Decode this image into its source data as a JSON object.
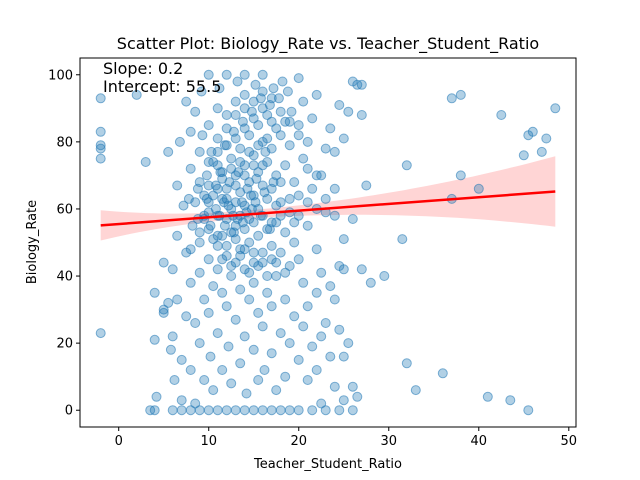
{
  "chart_data": {
    "type": "scatter",
    "title": "Scatter Plot: Biology_Rate vs. Teacher_Student_Ratio",
    "xlabel": "Teacher_Student_Ratio",
    "ylabel": "Biology_Rate",
    "xlim": [
      -4.3,
      50.8
    ],
    "ylim": [
      -5,
      105
    ],
    "x_ticks": [
      0,
      10,
      20,
      30,
      40,
      50
    ],
    "y_ticks": [
      0,
      20,
      40,
      60,
      80,
      100
    ],
    "grid": false,
    "annotations": [
      "Slope: 0.2",
      "Intercept: 55.5"
    ],
    "regression": {
      "slope": 0.2,
      "intercept": 55.5,
      "x_range": [
        -2,
        48.5
      ],
      "line_color": "#ff0000",
      "ci_color": "#ffb3b3",
      "ci_half_width_ends": [
        4.5,
        10.5
      ],
      "ci_half_width_center": 1.2,
      "ci_center_x": 13
    },
    "point_color": "#1f77b4",
    "points": [
      [
        -2,
        93
      ],
      [
        -2,
        83
      ],
      [
        -2,
        79
      ],
      [
        -2,
        78
      ],
      [
        -2,
        75
      ],
      [
        -2,
        23
      ],
      [
        2,
        94
      ],
      [
        3,
        74
      ],
      [
        3.5,
        0
      ],
      [
        4,
        35
      ],
      [
        4,
        21
      ],
      [
        4,
        0
      ],
      [
        4.2,
        4
      ],
      [
        5,
        30
      ],
      [
        5,
        44
      ],
      [
        5,
        29
      ],
      [
        5.5,
        77
      ],
      [
        5.5,
        32
      ],
      [
        5.8,
        18
      ],
      [
        6,
        0
      ],
      [
        6,
        42
      ],
      [
        6,
        22
      ],
      [
        6.2,
        9
      ],
      [
        6.5,
        52
      ],
      [
        6.5,
        67
      ],
      [
        6.5,
        33
      ],
      [
        6.8,
        80
      ],
      [
        7,
        3
      ],
      [
        7,
        0
      ],
      [
        7,
        15
      ],
      [
        7.2,
        61
      ],
      [
        7.5,
        28
      ],
      [
        7.5,
        92
      ],
      [
        7.5,
        47
      ],
      [
        7.8,
        63
      ],
      [
        8,
        83
      ],
      [
        8,
        72
      ],
      [
        8,
        38
      ],
      [
        8,
        12
      ],
      [
        8,
        0
      ],
      [
        8.2,
        55
      ],
      [
        8.5,
        26
      ],
      [
        8.5,
        89
      ],
      [
        8.5,
        2
      ],
      [
        8.8,
        66
      ],
      [
        9,
        77
      ],
      [
        9,
        50
      ],
      [
        9,
        41
      ],
      [
        9,
        20
      ],
      [
        9,
        0
      ],
      [
        9.2,
        95
      ],
      [
        9.5,
        58
      ],
      [
        9.5,
        33
      ],
      [
        9.5,
        9
      ],
      [
        9.8,
        70
      ],
      [
        10,
        85
      ],
      [
        10,
        62
      ],
      [
        10,
        54
      ],
      [
        10,
        45
      ],
      [
        10,
        29
      ],
      [
        10,
        100
      ],
      [
        10,
        0
      ],
      [
        10.2,
        16
      ],
      [
        10.5,
        74
      ],
      [
        10.5,
        37
      ],
      [
        10.5,
        6
      ],
      [
        10.8,
        67
      ],
      [
        11,
        90
      ],
      [
        11,
        81
      ],
      [
        11,
        58
      ],
      [
        11,
        49
      ],
      [
        11,
        42
      ],
      [
        11,
        23
      ],
      [
        11,
        0
      ],
      [
        11.2,
        96
      ],
      [
        11.5,
        71
      ],
      [
        11.5,
        63
      ],
      [
        11.5,
        52
      ],
      [
        11.5,
        35
      ],
      [
        11.5,
        12
      ],
      [
        11.8,
        79
      ],
      [
        12,
        88
      ],
      [
        12,
        66
      ],
      [
        12,
        57
      ],
      [
        12,
        46
      ],
      [
        12,
        31
      ],
      [
        12,
        100
      ],
      [
        12,
        0
      ],
      [
        12.2,
        19
      ],
      [
        12.5,
        75
      ],
      [
        12.5,
        60
      ],
      [
        12.5,
        53
      ],
      [
        12.5,
        40
      ],
      [
        12.5,
        8
      ],
      [
        12.8,
        83
      ],
      [
        13,
        92
      ],
      [
        13,
        70
      ],
      [
        13,
        62
      ],
      [
        13,
        55
      ],
      [
        13,
        44
      ],
      [
        13,
        27
      ],
      [
        13,
        0
      ],
      [
        13.2,
        98
      ],
      [
        13.5,
        78
      ],
      [
        13.5,
        65
      ],
      [
        13.5,
        58
      ],
      [
        13.5,
        48
      ],
      [
        13.5,
        36
      ],
      [
        13.5,
        14
      ],
      [
        13.8,
        86
      ],
      [
        14,
        94
      ],
      [
        14,
        73
      ],
      [
        14,
        61
      ],
      [
        14,
        54
      ],
      [
        14,
        42
      ],
      [
        14,
        22
      ],
      [
        14,
        100
      ],
      [
        14,
        0
      ],
      [
        14.2,
        5
      ],
      [
        14.5,
        82
      ],
      [
        14.5,
        68
      ],
      [
        14.5,
        57
      ],
      [
        14.5,
        50
      ],
      [
        14.5,
        33
      ],
      [
        14.8,
        89
      ],
      [
        15,
        76
      ],
      [
        15,
        64
      ],
      [
        15,
        56
      ],
      [
        15,
        47
      ],
      [
        15,
        38
      ],
      [
        15,
        18
      ],
      [
        15,
        0
      ],
      [
        15.2,
        97
      ],
      [
        15.5,
        85
      ],
      [
        15.5,
        71
      ],
      [
        15.5,
        60
      ],
      [
        15.5,
        52
      ],
      [
        15.5,
        29
      ],
      [
        15.5,
        9
      ],
      [
        15.8,
        93
      ],
      [
        16,
        80
      ],
      [
        16,
        67
      ],
      [
        16,
        58
      ],
      [
        16,
        44
      ],
      [
        16,
        25
      ],
      [
        16,
        100
      ],
      [
        16,
        0
      ],
      [
        16.2,
        12
      ],
      [
        16.5,
        88
      ],
      [
        16.5,
        74
      ],
      [
        16.5,
        63
      ],
      [
        16.5,
        54
      ],
      [
        16.5,
        35
      ],
      [
        16.8,
        91
      ],
      [
        17,
        78
      ],
      [
        17,
        66
      ],
      [
        17,
        49
      ],
      [
        17,
        31
      ],
      [
        17,
        17
      ],
      [
        17,
        0
      ],
      [
        17.2,
        96
      ],
      [
        17.5,
        84
      ],
      [
        17.5,
        70
      ],
      [
        17.5,
        56
      ],
      [
        17.5,
        40
      ],
      [
        17.5,
        6
      ],
      [
        17.8,
        93
      ],
      [
        18,
        82
      ],
      [
        18,
        62
      ],
      [
        18,
        47
      ],
      [
        18,
        23
      ],
      [
        18,
        0
      ],
      [
        18.2,
        98
      ],
      [
        18.5,
        86
      ],
      [
        18.5,
        73
      ],
      [
        18.5,
        53
      ],
      [
        18.5,
        33
      ],
      [
        18.5,
        10
      ],
      [
        18.8,
        95
      ],
      [
        19,
        79
      ],
      [
        19,
        59
      ],
      [
        19,
        43
      ],
      [
        19,
        20
      ],
      [
        19,
        0
      ],
      [
        19.2,
        89
      ],
      [
        19.5,
        68
      ],
      [
        19.5,
        50
      ],
      [
        19.5,
        28
      ],
      [
        20,
        99
      ],
      [
        20,
        85
      ],
      [
        20,
        64
      ],
      [
        20,
        45
      ],
      [
        20,
        15
      ],
      [
        20,
        0
      ],
      [
        20.5,
        92
      ],
      [
        20.5,
        75
      ],
      [
        20.5,
        38
      ],
      [
        20.5,
        25
      ],
      [
        21,
        80
      ],
      [
        21,
        55
      ],
      [
        21,
        31
      ],
      [
        21,
        9
      ],
      [
        21.5,
        87
      ],
      [
        21.5,
        66
      ],
      [
        21.5,
        19
      ],
      [
        21.5,
        0
      ],
      [
        22,
        94
      ],
      [
        22,
        48
      ],
      [
        22,
        35
      ],
      [
        22,
        12
      ],
      [
        22.5,
        70
      ],
      [
        22.5,
        41
      ],
      [
        22.5,
        22
      ],
      [
        22.5,
        2
      ],
      [
        23,
        78
      ],
      [
        23,
        59
      ],
      [
        23,
        26
      ],
      [
        23,
        0
      ],
      [
        23.5,
        84
      ],
      [
        23.5,
        37
      ],
      [
        23.5,
        16
      ],
      [
        24,
        77
      ],
      [
        24,
        66
      ],
      [
        24,
        33
      ],
      [
        24,
        7
      ],
      [
        24.5,
        91
      ],
      [
        24.5,
        43
      ],
      [
        24.5,
        24
      ],
      [
        24.5,
        0
      ],
      [
        25,
        81
      ],
      [
        25,
        42
      ],
      [
        25,
        16
      ],
      [
        25,
        3
      ],
      [
        25.5,
        89
      ],
      [
        25.5,
        20
      ],
      [
        26,
        57
      ],
      [
        26,
        98
      ],
      [
        26,
        7
      ],
      [
        26,
        0
      ],
      [
        26.5,
        97
      ],
      [
        26.5,
        4
      ],
      [
        27,
        97
      ],
      [
        27,
        88
      ],
      [
        27,
        42
      ],
      [
        27.5,
        67
      ],
      [
        28,
        38
      ],
      [
        29.5,
        40
      ],
      [
        31.5,
        51
      ],
      [
        32,
        73
      ],
      [
        32,
        14
      ],
      [
        33,
        6
      ],
      [
        36,
        11
      ],
      [
        37,
        93
      ],
      [
        37,
        63
      ],
      [
        38,
        94
      ],
      [
        38,
        70
      ],
      [
        40,
        66
      ],
      [
        41,
        4
      ],
      [
        42.5,
        88
      ],
      [
        43.5,
        3
      ],
      [
        45,
        76
      ],
      [
        45.5,
        82
      ],
      [
        45.5,
        0
      ],
      [
        46,
        83
      ],
      [
        47,
        77
      ],
      [
        47.5,
        81
      ],
      [
        48.5,
        90
      ],
      [
        9.5,
        57
      ],
      [
        10.5,
        64
      ],
      [
        11.5,
        69
      ],
      [
        12.5,
        72
      ],
      [
        13.5,
        74
      ],
      [
        14.5,
        77
      ],
      [
        15.5,
        79
      ],
      [
        16.5,
        81
      ],
      [
        17.5,
        61
      ],
      [
        11,
        73
      ],
      [
        12,
        79
      ],
      [
        13,
        81
      ],
      [
        14,
        84
      ],
      [
        15,
        87
      ],
      [
        16,
        90
      ],
      [
        17,
        86
      ],
      [
        18,
        68
      ],
      [
        10,
        74
      ],
      [
        11,
        66
      ],
      [
        12,
        63
      ],
      [
        13,
        67
      ],
      [
        14,
        70
      ],
      [
        15,
        73
      ],
      [
        16,
        73
      ],
      [
        17,
        56
      ],
      [
        9,
        68
      ],
      [
        10,
        59
      ],
      [
        11,
        52
      ],
      [
        12,
        49
      ],
      [
        13,
        51
      ],
      [
        14,
        48
      ],
      [
        15,
        44
      ],
      [
        16,
        47
      ],
      [
        17,
        45
      ],
      [
        18,
        58
      ],
      [
        19,
        63
      ],
      [
        8.5,
        62
      ],
      [
        9.5,
        64
      ],
      [
        10.5,
        51
      ],
      [
        11.5,
        45
      ],
      [
        12.5,
        43
      ],
      [
        13.5,
        46
      ],
      [
        14.5,
        41
      ],
      [
        15.5,
        43
      ],
      [
        16.5,
        40
      ],
      [
        17.5,
        44
      ],
      [
        18.5,
        41
      ],
      [
        19.5,
        56
      ],
      [
        20,
        58
      ],
      [
        21,
        62
      ],
      [
        22,
        60
      ],
      [
        8,
        48
      ],
      [
        9,
        53
      ],
      [
        10,
        67
      ],
      [
        11,
        77
      ],
      [
        12,
        84
      ],
      [
        13,
        88
      ],
      [
        14,
        90
      ],
      [
        15,
        92
      ],
      [
        16,
        95
      ],
      [
        17,
        93
      ],
      [
        18,
        89
      ],
      [
        19,
        86
      ],
      [
        20,
        82
      ],
      [
        21,
        72
      ],
      [
        22,
        70
      ],
      [
        23,
        63
      ],
      [
        24,
        58
      ],
      [
        25,
        51
      ],
      [
        10.2,
        55
      ],
      [
        11.2,
        58
      ],
      [
        12.2,
        61
      ],
      [
        13.2,
        57
      ],
      [
        14.2,
        59
      ],
      [
        15.2,
        62
      ],
      [
        16.2,
        65
      ],
      [
        17.2,
        68
      ],
      [
        12.8,
        53
      ],
      [
        13.8,
        56
      ],
      [
        14.8,
        60
      ],
      [
        15.8,
        58
      ],
      [
        16.8,
        54
      ],
      [
        11.8,
        55
      ],
      [
        10.8,
        60
      ],
      [
        9.8,
        63
      ],
      [
        8.8,
        57
      ],
      [
        12.3,
        68
      ],
      [
        13.3,
        71
      ],
      [
        14.3,
        66
      ],
      [
        15.3,
        69
      ],
      [
        16.3,
        77
      ],
      [
        11.3,
        71
      ],
      [
        10.3,
        77
      ],
      [
        9.3,
        82
      ],
      [
        13.7,
        62
      ],
      [
        14.7,
        64
      ],
      [
        12.7,
        58
      ],
      [
        11.7,
        62
      ]
    ]
  }
}
